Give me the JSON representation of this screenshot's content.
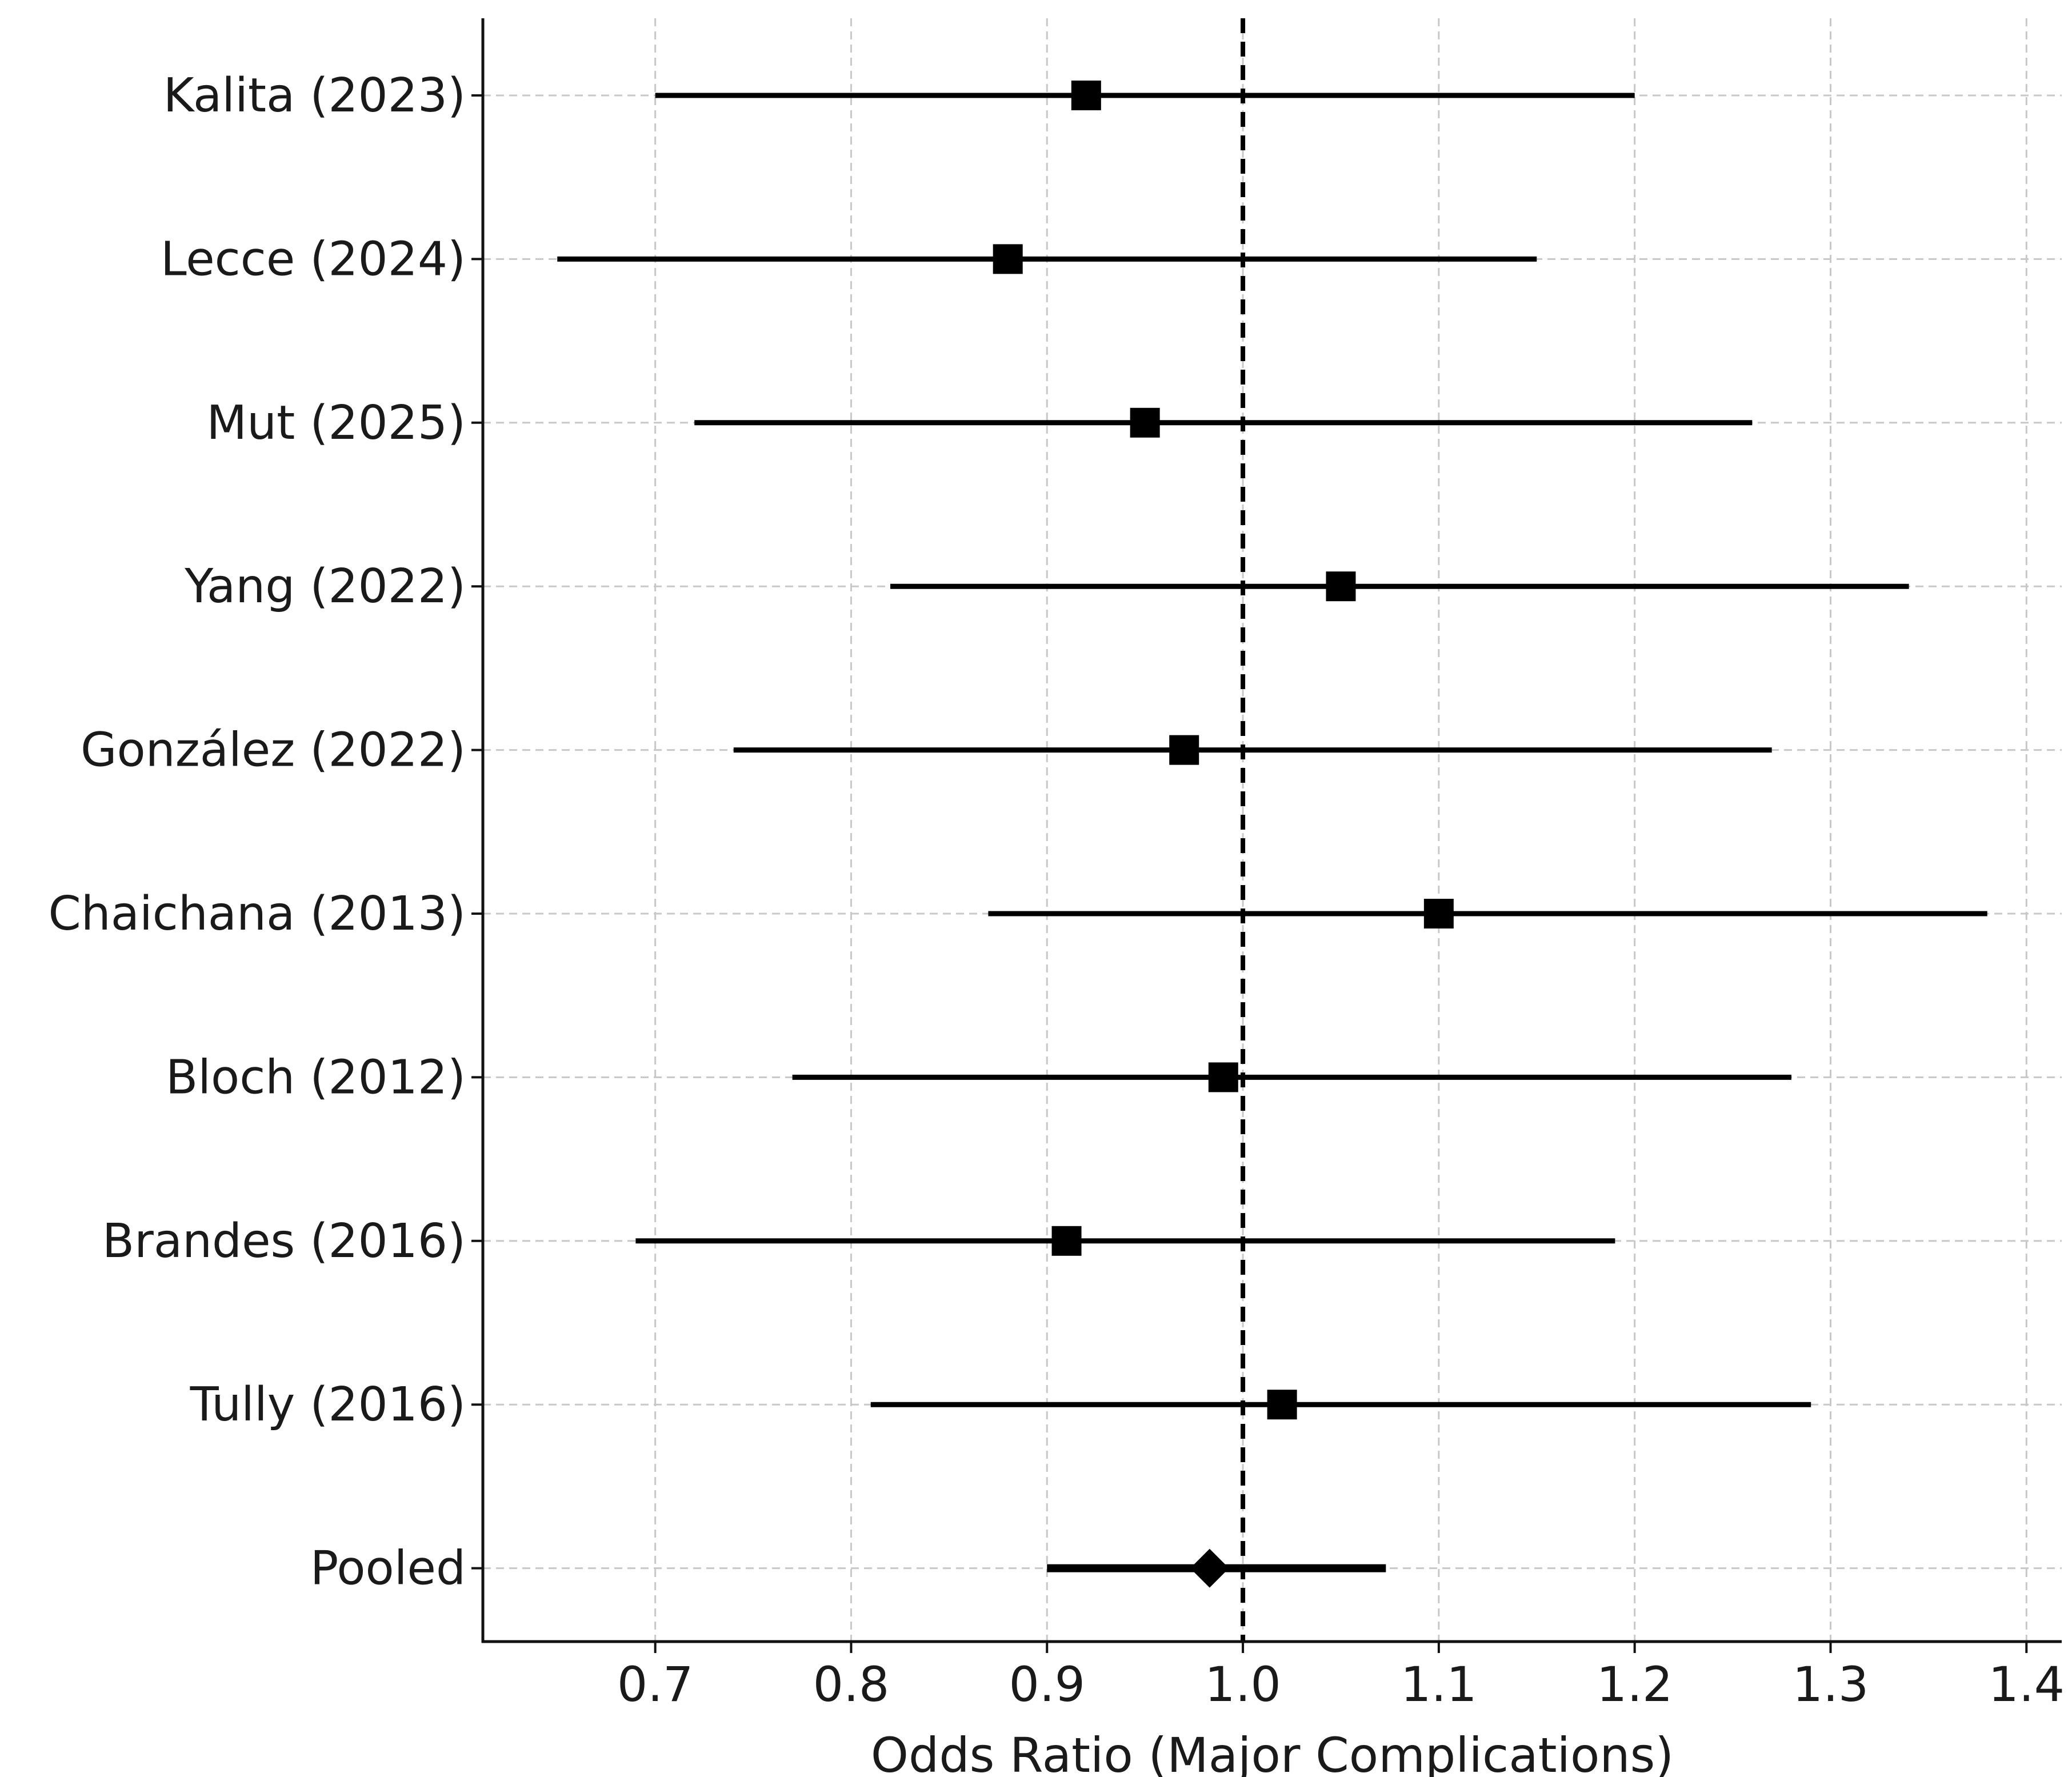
{
  "chart_data": {
    "type": "forest",
    "xlabel": "Odds Ratio (Major Complications)",
    "ylabel": "",
    "xlim": [
      0.612,
      1.418
    ],
    "xticks": [
      0.7,
      0.8,
      0.9,
      1.0,
      1.1,
      1.2,
      1.3,
      1.4
    ],
    "xtick_labels": [
      "0.7",
      "0.8",
      "0.9",
      "1.0",
      "1.1",
      "1.2",
      "1.3",
      "1.4"
    ],
    "reference_line": 1.0,
    "grid": true,
    "studies": [
      {
        "label": "Kalita (2023)",
        "or": 0.92,
        "lower": 0.7,
        "upper": 1.2,
        "marker": "square"
      },
      {
        "label": "Lecce (2024)",
        "or": 0.88,
        "lower": 0.65,
        "upper": 1.15,
        "marker": "square"
      },
      {
        "label": "Mut (2025)",
        "or": 0.95,
        "lower": 0.72,
        "upper": 1.26,
        "marker": "square"
      },
      {
        "label": "Yang (2022)",
        "or": 1.05,
        "lower": 0.82,
        "upper": 1.34,
        "marker": "square"
      },
      {
        "label": "González (2022)",
        "or": 0.97,
        "lower": 0.74,
        "upper": 1.27,
        "marker": "square"
      },
      {
        "label": "Chaichana (2013)",
        "or": 1.1,
        "lower": 0.87,
        "upper": 1.38,
        "marker": "square"
      },
      {
        "label": "Bloch (2012)",
        "or": 0.99,
        "lower": 0.77,
        "upper": 1.28,
        "marker": "square"
      },
      {
        "label": "Brandes (2016)",
        "or": 0.91,
        "lower": 0.69,
        "upper": 1.19,
        "marker": "square"
      },
      {
        "label": "Tully (2016)",
        "or": 1.02,
        "lower": 0.81,
        "upper": 1.29,
        "marker": "square"
      },
      {
        "label": "Pooled",
        "or": 0.983,
        "lower": 0.9,
        "upper": 1.073,
        "marker": "diamond"
      }
    ]
  }
}
